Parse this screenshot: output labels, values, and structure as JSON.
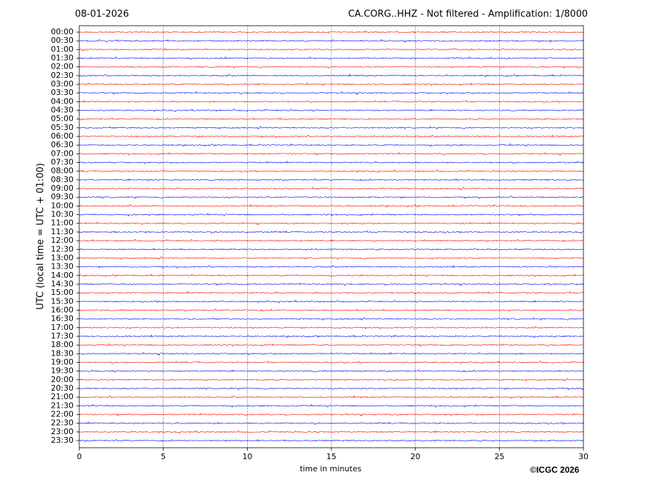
{
  "chart_data": {
    "type": "helicorder",
    "date": "08-01-2026",
    "title": "CA.CORG..HHZ - Not filtered - Amplification: 1/8000",
    "xlabel": "time in minutes",
    "ylabel": "UTC (local time = UTC + 01:00)",
    "credit": "©ICGC 2026",
    "rows": [
      "00:00",
      "00:30",
      "01:00",
      "01:30",
      "02:00",
      "02:30",
      "03:00",
      "03:30",
      "04:00",
      "04:30",
      "05:00",
      "05:30",
      "06:00",
      "06:30",
      "07:00",
      "07:30",
      "08:00",
      "08:30",
      "09:00",
      "09:30",
      "10:00",
      "10:30",
      "11:00",
      "11:30",
      "12:00",
      "12:30",
      "13:00",
      "13:30",
      "14:00",
      "14:30",
      "15:00",
      "15:30",
      "16:00",
      "16:30",
      "17:00",
      "17:30",
      "18:00",
      "18:30",
      "19:00",
      "19:30",
      "20:00",
      "20:30",
      "21:00",
      "21:30",
      "22:00",
      "22:30",
      "23:00",
      "23:30"
    ],
    "row_colors": [
      "#ff0000",
      "#0000ff"
    ],
    "xlim": [
      0,
      30
    ],
    "xticks": [
      0,
      5,
      10,
      15,
      20,
      25,
      30
    ],
    "grid": true
  }
}
